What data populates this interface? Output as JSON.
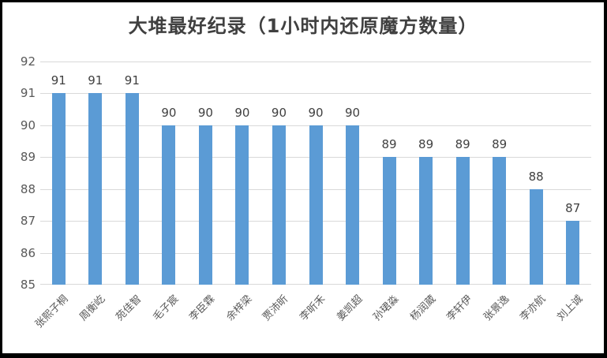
{
  "title": "大堆最好纪录（1小时内还原魔方数量）",
  "colors": {
    "bar": "#5b9bd5",
    "gridline": "#d9d9d9",
    "axis_line": "#d9d9d9",
    "title_text": "#404040",
    "tick_text": "#595959",
    "data_label_text": "#404040",
    "frame_border": "#000000",
    "background": "#ffffff"
  },
  "chart_data": {
    "type": "bar",
    "title": "大堆最好纪录（1小时内还原魔方数量）",
    "categories": [
      "张熙子桐",
      "周衡屹",
      "苑佳智",
      "毛子宸",
      "李臣霖",
      "余梓梁",
      "贾沛昕",
      "李昕禾",
      "姜凯超",
      "孙珺淼",
      "杨润葳",
      "李轩伊",
      "张景逸",
      "李亦航",
      "刘上诚"
    ],
    "values": [
      91,
      91,
      91,
      90,
      90,
      90,
      90,
      90,
      90,
      89,
      89,
      89,
      89,
      88,
      87
    ],
    "xlabel": "",
    "ylabel": "",
    "ylim": [
      85,
      92
    ],
    "ytick_step": 1,
    "yticks": [
      85,
      86,
      87,
      88,
      89,
      90,
      91,
      92
    ],
    "grid": true,
    "data_labels": true,
    "legend": "none",
    "x_label_rotation_deg": -45
  }
}
